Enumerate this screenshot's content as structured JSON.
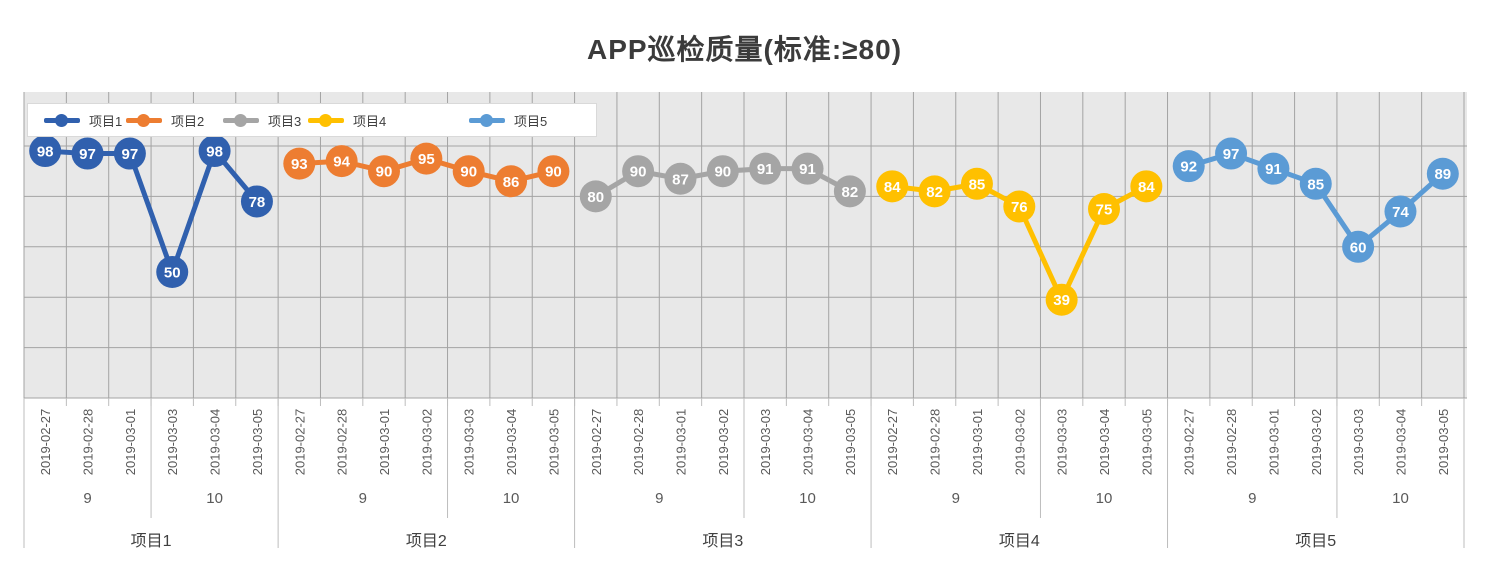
{
  "title": "APP巡检质量(标准:≥80)",
  "chart_data": {
    "type": "line",
    "title": "APP巡检质量(标准:≥80)",
    "ylim": [
      0,
      100
    ],
    "grid_step": 20,
    "grid": true,
    "legend_position": "top-left-inside",
    "plot_bg_color": "#e8e8e8",
    "gridline_color": "#a3a3a3",
    "axis_separator_color": "#bdbdbd",
    "axis_text_color": "#595959",
    "series": [
      {
        "name": "项目1",
        "color": "#3060AE",
        "weeks": [
          {
            "week": "9",
            "dates": [
              "2019-02-27",
              "2019-02-28",
              "2019-03-01"
            ]
          },
          {
            "week": "10",
            "dates": [
              "2019-03-03",
              "2019-03-04",
              "2019-03-05"
            ]
          }
        ],
        "values": [
          98,
          97,
          97,
          50,
          98,
          78
        ]
      },
      {
        "name": "项目2",
        "color": "#ED7D31",
        "weeks": [
          {
            "week": "9",
            "dates": [
              "2019-02-27",
              "2019-02-28",
              "2019-03-01",
              "2019-03-02"
            ]
          },
          {
            "week": "10",
            "dates": [
              "2019-03-03",
              "2019-03-04",
              "2019-03-05"
            ]
          }
        ],
        "values": [
          93,
          94,
          90,
          95,
          90,
          86,
          90
        ]
      },
      {
        "name": "项目3",
        "color": "#A5A5A5",
        "weeks": [
          {
            "week": "9",
            "dates": [
              "2019-02-27",
              "2019-02-28",
              "2019-03-01",
              "2019-03-02"
            ]
          },
          {
            "week": "10",
            "dates": [
              "2019-03-03",
              "2019-03-04",
              "2019-03-05"
            ]
          }
        ],
        "values": [
          80,
          90,
          87,
          90,
          91,
          91,
          82
        ]
      },
      {
        "name": "项目4",
        "color": "#FFC000",
        "weeks": [
          {
            "week": "9",
            "dates": [
              "2019-02-27",
              "2019-02-28",
              "2019-03-01",
              "2019-03-02"
            ]
          },
          {
            "week": "10",
            "dates": [
              "2019-03-03",
              "2019-03-04",
              "2019-03-05"
            ]
          }
        ],
        "values": [
          84,
          82,
          85,
          76,
          39,
          75,
          84
        ]
      },
      {
        "name": "项目5",
        "color": "#5B9BD5",
        "weeks": [
          {
            "week": "9",
            "dates": [
              "2019-02-27",
              "2019-02-28",
              "2019-03-01",
              "2019-03-02"
            ]
          },
          {
            "week": "10",
            "dates": [
              "2019-03-03",
              "2019-03-04",
              "2019-03-05"
            ]
          }
        ],
        "values": [
          92,
          97,
          91,
          85,
          60,
          74,
          89
        ]
      }
    ]
  }
}
